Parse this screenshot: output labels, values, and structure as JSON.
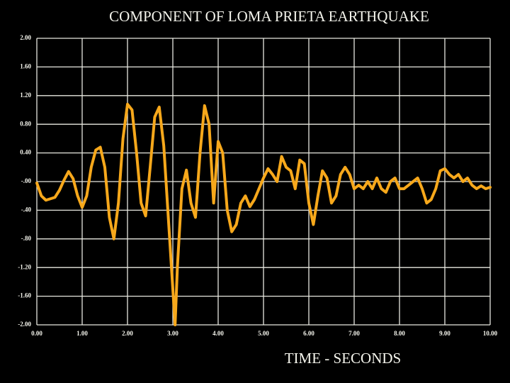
{
  "chart_data": {
    "type": "line",
    "title": "COMPONENT OF LOMA PRIETA EARTHQUAKE",
    "xlabel": "TIME -  SECONDS",
    "color": "#f7a81b",
    "grid": true,
    "xlim": [
      0,
      10
    ],
    "ylim": [
      -2,
      2
    ],
    "xticks": [
      {
        "value": 0,
        "label": "0.00"
      },
      {
        "value": 1,
        "label": "1.00"
      },
      {
        "value": 2,
        "label": "2.00"
      },
      {
        "value": 3,
        "label": "3.00"
      },
      {
        "value": 4,
        "label": "4.00"
      },
      {
        "value": 5,
        "label": "5.00"
      },
      {
        "value": 6,
        "label": "6.00"
      },
      {
        "value": 7,
        "label": "7.00"
      },
      {
        "value": 8,
        "label": "8.00"
      },
      {
        "value": 9,
        "label": "9.00"
      },
      {
        "value": 10,
        "label": "10.00"
      }
    ],
    "yticks": [
      {
        "value": 2,
        "label": "2.00"
      },
      {
        "value": 1.6,
        "label": "1.60"
      },
      {
        "value": 1.2,
        "label": "1.20"
      },
      {
        "value": 0.8,
        "label": "0.80"
      },
      {
        "value": 0.4,
        "label": "0.40"
      },
      {
        "value": 0,
        "label": "-.00"
      },
      {
        "value": -0.4,
        "label": "-.40"
      },
      {
        "value": -0.8,
        "label": "-.80"
      },
      {
        "value": -1.2,
        "label": "-1.20"
      },
      {
        "value": -1.6,
        "label": "-1.60"
      },
      {
        "value": -2,
        "label": "-2.00"
      }
    ],
    "x": [
      0,
      0.1,
      0.2,
      0.3,
      0.4,
      0.5,
      0.6,
      0.7,
      0.8,
      0.9,
      1.0,
      1.1,
      1.2,
      1.3,
      1.4,
      1.5,
      1.6,
      1.7,
      1.8,
      1.9,
      2.0,
      2.1,
      2.2,
      2.3,
      2.4,
      2.5,
      2.6,
      2.7,
      2.8,
      2.9,
      3.0,
      3.05,
      3.1,
      3.2,
      3.3,
      3.4,
      3.5,
      3.6,
      3.7,
      3.8,
      3.9,
      4.0,
      4.1,
      4.2,
      4.3,
      4.4,
      4.5,
      4.6,
      4.7,
      4.8,
      4.9,
      5.0,
      5.1,
      5.2,
      5.3,
      5.4,
      5.5,
      5.6,
      5.7,
      5.8,
      5.9,
      6.0,
      6.1,
      6.2,
      6.3,
      6.4,
      6.5,
      6.6,
      6.7,
      6.8,
      6.9,
      7.0,
      7.1,
      7.2,
      7.3,
      7.4,
      7.5,
      7.6,
      7.7,
      7.8,
      7.9,
      8.0,
      8.1,
      8.2,
      8.3,
      8.4,
      8.5,
      8.6,
      8.7,
      8.8,
      8.9,
      9.0,
      9.1,
      9.2,
      9.3,
      9.4,
      9.5,
      9.6,
      9.7,
      9.8,
      9.9,
      10.0
    ],
    "values": [
      -0.02,
      -0.2,
      -0.26,
      -0.24,
      -0.22,
      -0.12,
      0.02,
      0.14,
      0.04,
      -0.2,
      -0.36,
      -0.2,
      0.2,
      0.44,
      0.48,
      0.2,
      -0.5,
      -0.8,
      -0.3,
      0.6,
      1.08,
      1.0,
      0.4,
      -0.3,
      -0.48,
      0.2,
      0.9,
      1.04,
      0.5,
      -0.5,
      -1.5,
      -2.0,
      -1.2,
      -0.1,
      0.16,
      -0.3,
      -0.5,
      0.4,
      1.06,
      0.8,
      -0.3,
      0.56,
      0.4,
      -0.4,
      -0.7,
      -0.6,
      -0.3,
      -0.2,
      -0.35,
      -0.25,
      -0.1,
      0.05,
      0.18,
      0.1,
      0.0,
      0.35,
      0.2,
      0.15,
      -0.1,
      0.3,
      0.25,
      -0.3,
      -0.6,
      -0.2,
      0.15,
      0.05,
      -0.3,
      -0.2,
      0.1,
      0.2,
      0.1,
      -0.1,
      -0.05,
      -0.1,
      0.0,
      -0.1,
      0.05,
      -0.1,
      -0.15,
      0.0,
      0.05,
      -0.1,
      -0.1,
      -0.05,
      0.0,
      0.05,
      -0.1,
      -0.3,
      -0.25,
      -0.1,
      0.15,
      0.18,
      0.1,
      0.05,
      0.1,
      0.0,
      0.05,
      -0.05,
      -0.1,
      -0.06,
      -0.1,
      -0.08
    ]
  }
}
